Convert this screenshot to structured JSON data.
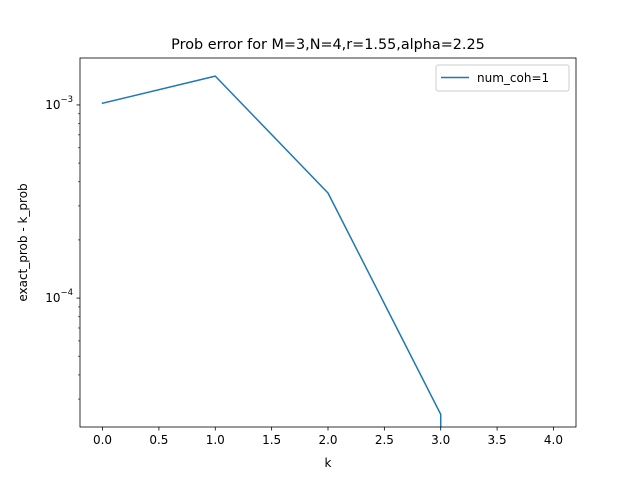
{
  "chart_data": {
    "type": "line",
    "title": "Prob error for M=3,N=4,r=1.55,alpha=2.25",
    "xlabel": "k",
    "ylabel": "exact_prob - k_prob",
    "xscale": "linear",
    "yscale": "log",
    "xlim": [
      -0.2,
      4.2
    ],
    "ylim": [
      2.15e-05,
      0.00175
    ],
    "x_ticks": [
      0.0,
      0.5,
      1.0,
      1.5,
      2.0,
      2.5,
      3.0,
      3.5,
      4.0
    ],
    "x_tick_labels": [
      "0.0",
      "0.5",
      "1.0",
      "1.5",
      "2.0",
      "2.5",
      "3.0",
      "3.5",
      "4.0"
    ],
    "y_major_ticks": [
      0.0001,
      0.001
    ],
    "y_major_tick_labels": [
      {
        "base": "10",
        "exp": "−4"
      },
      {
        "base": "10",
        "exp": "−3"
      }
    ],
    "y_minor_ticks": [
      3e-05,
      4e-05,
      5e-05,
      6e-05,
      7e-05,
      8e-05,
      9e-05,
      0.0002,
      0.0003,
      0.0004,
      0.0005,
      0.0006,
      0.0007,
      0.0008,
      0.0009
    ],
    "grid": false,
    "legend_location": "upper right",
    "series": [
      {
        "name": "num_coh=1",
        "color": "#1f77b4",
        "points": [
          {
            "x": 0.0,
            "y": 0.00102
          },
          {
            "x": 1.0,
            "y": 0.00141
          },
          {
            "x": 2.0,
            "y": 0.00035
          },
          {
            "x": 3.0,
            "y": 2.5e-05
          },
          {
            "x": 3.0,
            "y": 2.15e-05
          }
        ]
      }
    ]
  }
}
